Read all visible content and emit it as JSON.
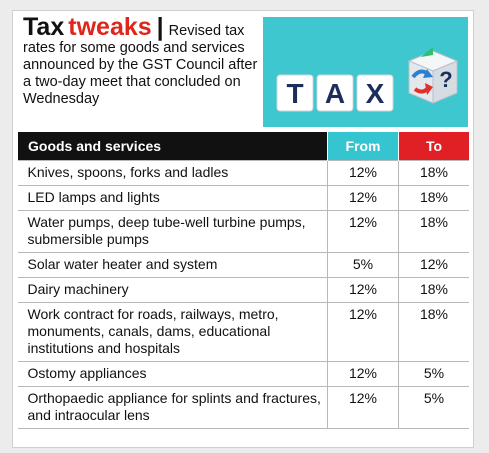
{
  "headline": {
    "title_part1": "Tax",
    "title_part2": "tweaks",
    "separator": "|",
    "intro": "Revised tax rates for some goods and services announced by the GST Council after a two-day meet that concluded on Wednesday"
  },
  "illustration": {
    "letters": [
      "T",
      "A",
      "X"
    ],
    "background_color": "#3ec7cf",
    "icon": "tax-cube-icon"
  },
  "table": {
    "headers": [
      "Goods and services",
      "From",
      "To"
    ],
    "header_colors": {
      "goods": "#111111",
      "from": "#35c5d1",
      "to": "#e12026"
    },
    "rows": [
      {
        "item": "Knives, spoons, forks and ladles",
        "from": "12%",
        "to": "18%"
      },
      {
        "item": "LED lamps and lights",
        "from": "12%",
        "to": "18%"
      },
      {
        "item": "Water pumps, deep tube-well turbine pumps, submersible pumps",
        "from": "12%",
        "to": "18%"
      },
      {
        "item": "Solar water heater and system",
        "from": "5%",
        "to": "12%"
      },
      {
        "item": "Dairy machinery",
        "from": "12%",
        "to": "18%"
      },
      {
        "item": "Work contract for roads, railways, metro, monuments, canals, dams, educational institutions and hospitals",
        "from": "12%",
        "to": "18%"
      },
      {
        "item": "Ostomy appliances",
        "from": "12%",
        "to": "5%"
      },
      {
        "item": "Orthopaedic appliance for splints and fractures, and intraocular lens",
        "from": "12%",
        "to": "5%"
      }
    ]
  }
}
